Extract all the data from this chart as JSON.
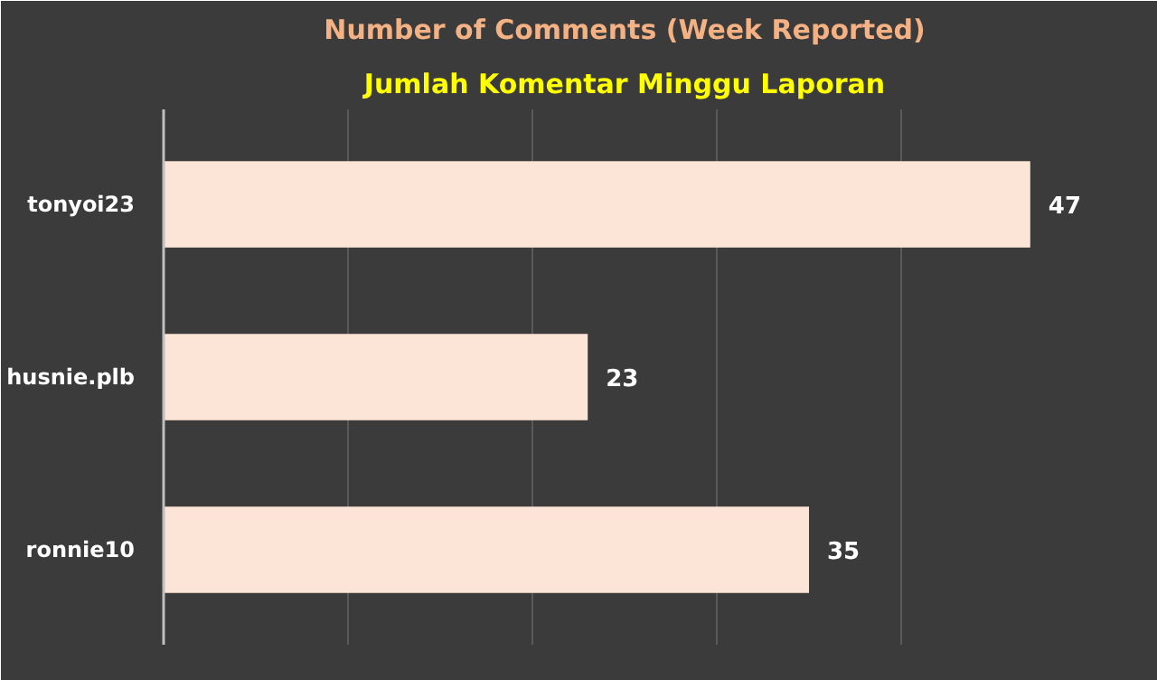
{
  "chart_data": {
    "type": "bar",
    "orientation": "horizontal",
    "title": "Number of Comments (Week Reported)",
    "subtitle": "Jumlah Komentar Minggu Laporan",
    "categories": [
      "tonyoi23",
      "husnie.plb",
      "ronnie10"
    ],
    "values": [
      47,
      23,
      35
    ],
    "color": "#fce4d6",
    "data_labels": true,
    "xlim": [
      0,
      50
    ],
    "xticks": [
      {
        "value": 0,
        "label": null
      },
      {
        "value": 10,
        "label": null
      },
      {
        "value": 20,
        "label": null
      },
      {
        "value": 30,
        "label": null
      },
      {
        "value": 40,
        "label": null
      },
      {
        "value": 50,
        "label": null
      }
    ],
    "grid": "x",
    "tick_labels": "y"
  }
}
